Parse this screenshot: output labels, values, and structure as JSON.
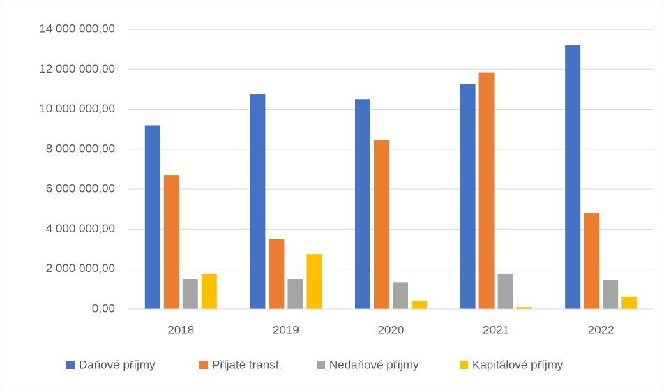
{
  "chart_data": {
    "type": "bar",
    "categories": [
      "2018",
      "2019",
      "2020",
      "2021",
      "2022"
    ],
    "series": [
      {
        "name": "Daňové příjmy",
        "color": "#4472c4",
        "values": [
          9200000,
          10750000,
          10500000,
          11250000,
          13200000
        ]
      },
      {
        "name": "Přijaté transf.",
        "color": "#ed7d31",
        "values": [
          6700000,
          3500000,
          8450000,
          11850000,
          4800000
        ]
      },
      {
        "name": "Nedaňové příjmy",
        "color": "#a5a5a5",
        "values": [
          1500000,
          1500000,
          1350000,
          1750000,
          1450000
        ]
      },
      {
        "name": "Kapitálové příjmy",
        "color": "#ffc000",
        "values": [
          1750000,
          2750000,
          400000,
          100000,
          630000
        ]
      }
    ],
    "ylim": [
      0,
      14000000
    ],
    "yticks": [
      {
        "value": 0,
        "label": "0,00"
      },
      {
        "value": 2000000,
        "label": "2 000 000,00"
      },
      {
        "value": 4000000,
        "label": "4 000 000,00"
      },
      {
        "value": 6000000,
        "label": "6 000 000,00"
      },
      {
        "value": 8000000,
        "label": "8 000 000,00"
      },
      {
        "value": 10000000,
        "label": "10 000 000,00"
      },
      {
        "value": 12000000,
        "label": "12 000 000,00"
      },
      {
        "value": 14000000,
        "label": "14 000 000,00"
      }
    ],
    "grid": true,
    "legend": "bottom"
  }
}
